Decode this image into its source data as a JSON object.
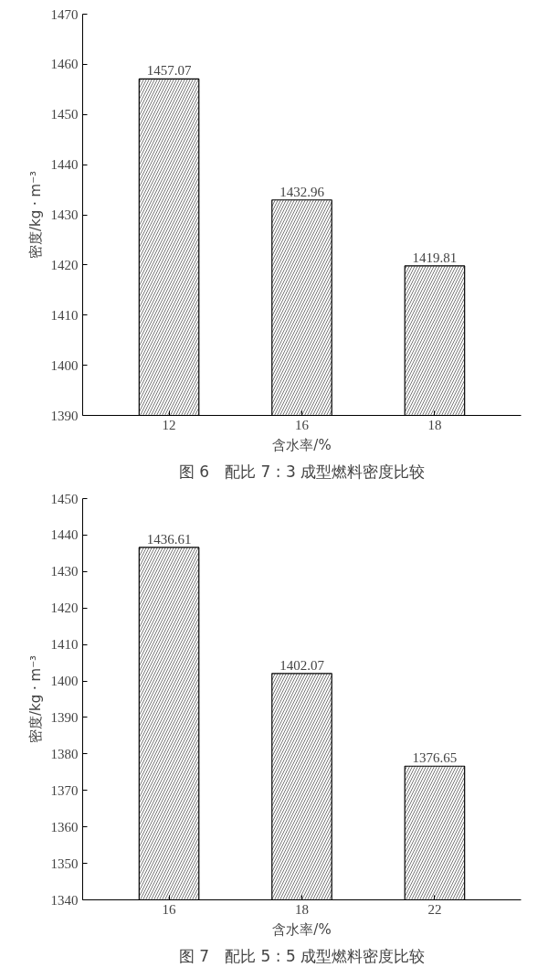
{
  "chart_data": [
    {
      "type": "bar",
      "title": "图 6　配比 7 : 3 成型燃料密度比较",
      "xlabel": "含水率/%",
      "ylabel": "密度/kg · m⁻³",
      "categories": [
        "12",
        "16",
        "18"
      ],
      "values": [
        1457.07,
        1432.96,
        1419.81
      ],
      "color": "#ffffff",
      "ylim": [
        1390,
        1470
      ],
      "yticks": [
        1390,
        1400,
        1410,
        1420,
        1430,
        1440,
        1450,
        1460,
        1470
      ],
      "data_labels": true,
      "grid": false
    },
    {
      "type": "bar",
      "title": "图 7　配比 5 : 5 成型燃料密度比较",
      "xlabel": "含水率/%",
      "ylabel": "密度/kg · m⁻³",
      "categories": [
        "16",
        "18",
        "22"
      ],
      "values": [
        1436.61,
        1402.07,
        1376.65
      ],
      "color": "#ffffff",
      "ylim": [
        1340,
        1450
      ],
      "yticks": [
        1340,
        1350,
        1360,
        1370,
        1380,
        1390,
        1400,
        1410,
        1420,
        1430,
        1440,
        1450
      ],
      "data_labels": true,
      "grid": false
    }
  ]
}
